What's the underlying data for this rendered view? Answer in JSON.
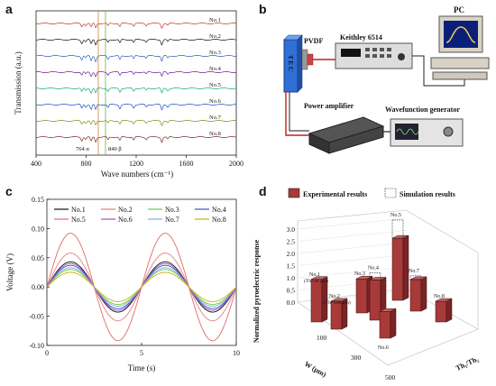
{
  "panels": {
    "a": "a",
    "b": "b",
    "c": "c",
    "d": "d"
  },
  "panel_a": {
    "ylabel": "Transmission (a.u.)",
    "xlabel": "Wave numbers (cm⁻¹)",
    "xticks": [
      "400",
      "800",
      "1200",
      "1600",
      "2000"
    ],
    "annotation_left": "764 α",
    "annotation_right": "840 β",
    "color_alpha": "#c98a2e",
    "color_beta": "#6ab04c",
    "samples": [
      {
        "label": "No.1",
        "color": "#c0392b"
      },
      {
        "label": "No.2",
        "color": "#111111"
      },
      {
        "label": "No.3",
        "color": "#2e5fb5"
      },
      {
        "label": "No.4",
        "color": "#6a1b9a"
      },
      {
        "label": "No.5",
        "color": "#17a589"
      },
      {
        "label": "No.6",
        "color": "#1a4fc4"
      },
      {
        "label": "No.7",
        "color": "#8a8a1a"
      },
      {
        "label": "No.8",
        "color": "#7b2d2d"
      }
    ]
  },
  "panel_b": {
    "pvdf": "PVDF",
    "keithley": "Keithley 6514",
    "pc": "PC",
    "tec": "T E C",
    "power_amplifier": "Power amplifier",
    "wavefunction": "Wavefunction generator"
  },
  "chart_data": {
    "type": "line",
    "xlabel": "Time (s)",
    "ylabel": "Voltage (V)",
    "xlim": [
      0,
      10
    ],
    "ylim": [
      -0.1,
      0.15
    ],
    "xticks": [
      "0",
      "5",
      "10"
    ],
    "yticks": [
      "-0.10",
      "-0.05",
      "0.00",
      "0.05",
      "0.10",
      "0.15"
    ],
    "period": 5,
    "series": [
      {
        "name": "No.1",
        "amplitude": 0.043,
        "color": "#111111"
      },
      {
        "name": "No.2",
        "amplitude": 0.058,
        "color": "#e08080"
      },
      {
        "name": "No.3",
        "amplitude": 0.03,
        "color": "#66cc44"
      },
      {
        "name": "No.4",
        "amplitude": 0.037,
        "color": "#3355cc"
      },
      {
        "name": "No.5",
        "amplitude": 0.092,
        "color": "#e06a6a"
      },
      {
        "name": "No.6",
        "amplitude": 0.04,
        "color": "#a050c0"
      },
      {
        "name": "No.7",
        "amplitude": 0.033,
        "color": "#88aadd"
      },
      {
        "name": "No.8",
        "amplitude": 0.025,
        "color": "#c8b400"
      }
    ]
  },
  "panel_d": {
    "legend_exp": "Experimental results",
    "legend_sim": "Simulation results",
    "zlabel": "Normalized pyroelectric response",
    "xlabel": "W (μm)",
    "ylabel": "Th₁/Th₂",
    "zticks": [
      "0.0",
      "0.5",
      "1.0",
      "1.5",
      "2.0",
      "2.5",
      "3.0"
    ],
    "xticks": [
      "100",
      "300",
      "500"
    ],
    "bar_color": "#a83a3a",
    "bars": [
      {
        "label": "No.1",
        "sub": "(Th=58 μm)",
        "exp": 1.75,
        "sim": 1.75
      },
      {
        "label": "No.2",
        "sub": "(Th=106 μm)",
        "exp": 1.15,
        "sim": 1.15
      },
      {
        "label": "No.3",
        "sub": "",
        "exp": 1.4,
        "sim": 1.4
      },
      {
        "label": "No.4",
        "sub": "",
        "exp": 1.65,
        "sim": 1.95
      },
      {
        "label": "No.5",
        "sub": "",
        "exp": 2.55,
        "sim": 3.3
      },
      {
        "label": "No.6",
        "sub": "",
        "exp": 1.1,
        "sim": 1.1
      },
      {
        "label": "No.7",
        "sub": "",
        "exp": 1.3,
        "sim": 1.45
      },
      {
        "label": "No.8",
        "sub": "",
        "exp": 0.85,
        "sim": 0.85
      }
    ]
  }
}
